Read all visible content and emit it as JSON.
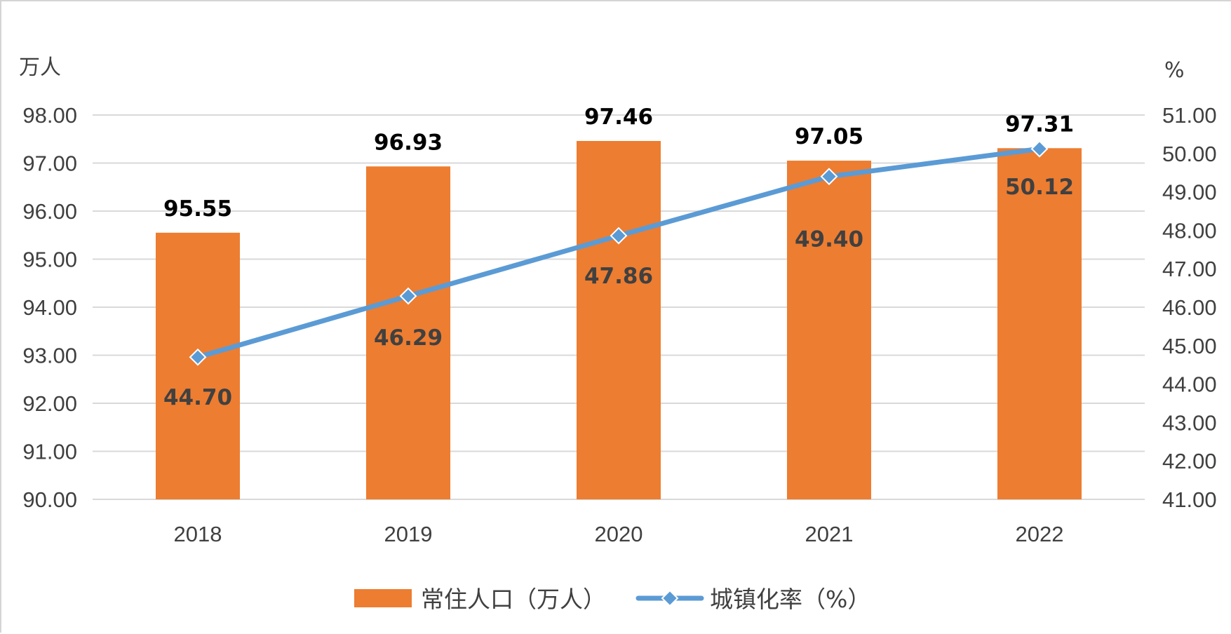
{
  "chart_data": {
    "type": "bar",
    "categories": [
      "2018",
      "2019",
      "2020",
      "2021",
      "2022"
    ],
    "series": [
      {
        "name": "常住人口（万人）",
        "type": "bar",
        "axis": "left",
        "color": "#ED7D31",
        "values": [
          95.55,
          96.93,
          97.46,
          97.05,
          97.31
        ],
        "labels": [
          "95.55",
          "96.93",
          "97.46",
          "97.05",
          "97.31"
        ]
      },
      {
        "name": "城镇化率（%）",
        "type": "line",
        "axis": "right",
        "color": "#5B9BD5",
        "values": [
          44.7,
          46.29,
          47.86,
          49.4,
          50.12
        ],
        "labels": [
          "44.70",
          "46.29",
          "47.86",
          "49.40",
          "50.12"
        ]
      }
    ],
    "y_left": {
      "unit": "万人",
      "ylim": [
        90,
        98
      ],
      "ticks": [
        "90.00",
        "91.00",
        "92.00",
        "93.00",
        "94.00",
        "95.00",
        "96.00",
        "97.00",
        "98.00"
      ]
    },
    "y_right": {
      "unit": "%",
      "ylim": [
        41,
        51
      ],
      "ticks": [
        "41.00",
        "42.00",
        "43.00",
        "44.00",
        "45.00",
        "46.00",
        "47.00",
        "48.00",
        "49.00",
        "50.00",
        "51.00"
      ]
    },
    "grid": true,
    "legend_position": "bottom",
    "gridline_color": "#D9D9D9"
  }
}
